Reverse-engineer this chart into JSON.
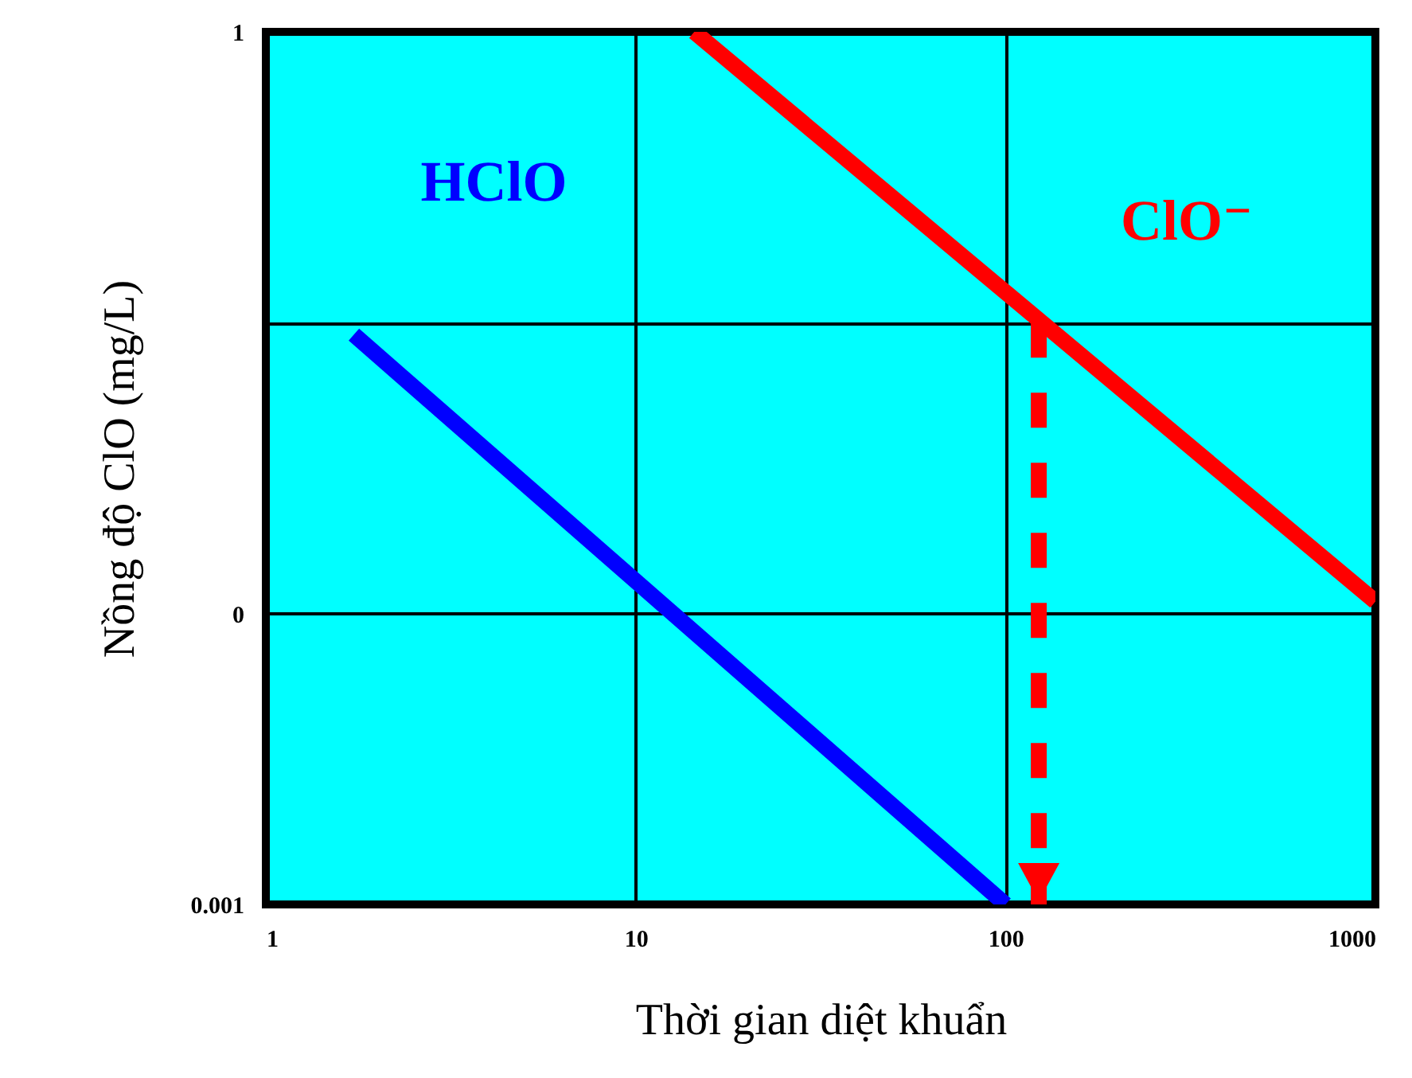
{
  "chart_data": {
    "type": "line",
    "xlabel": "Thời gian diệt khuẩn",
    "ylabel": "Nồng độ ClO (mg/L)",
    "log": "xy",
    "grid": true,
    "xlim": [
      1,
      1000
    ],
    "xticks": [
      1,
      10,
      100,
      1000
    ],
    "ylim": [
      0.001,
      1
    ],
    "yticks": [
      {
        "value": 0.001,
        "label": "0.001"
      },
      {
        "value": 0.01,
        "label": "0"
      },
      {
        "value": 0.1,
        "label": null
      },
      1
    ],
    "series": [
      {
        "color": "#0000ff",
        "x": [
          1.73,
          100
        ],
        "values": [
          0.091,
          0.001
        ]
      },
      {
        "color": "#ff0000",
        "x": [
          14.4,
          1000
        ],
        "values": [
          1,
          0.011
        ]
      },
      {
        "color": "#ff0000",
        "x": [
          123,
          123
        ],
        "values": [
          0.1,
          0.001
        ],
        "line_style": "dashed"
      }
    ],
    "annotations": [
      {
        "text": "HClO",
        "x": 1.73,
        "y": 0.091
      },
      {
        "text": "ClO⁻",
        "x": 123,
        "y": 0.1
      }
    ]
  }
}
